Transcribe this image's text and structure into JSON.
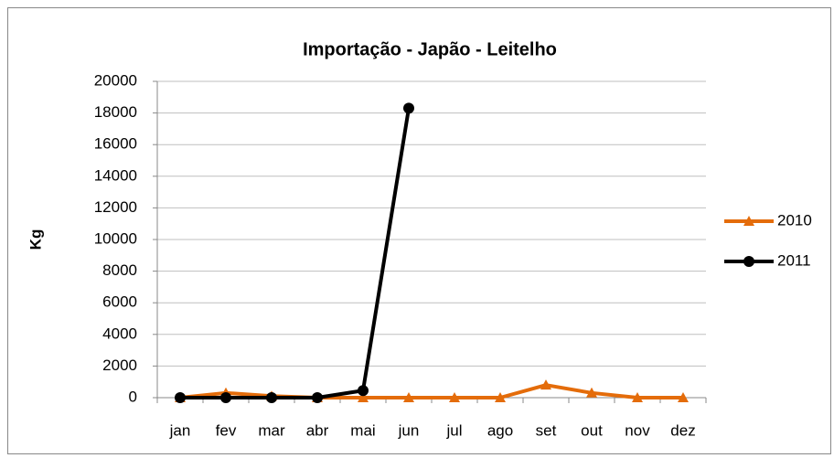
{
  "chart_data": {
    "type": "line",
    "title": "Importação - Japão - Leitelho",
    "y_label": "Kg",
    "categories": [
      "jan",
      "fev",
      "mar",
      "abr",
      "mai",
      "jun",
      "jul",
      "ago",
      "set",
      "out",
      "nov",
      "dez"
    ],
    "series": [
      {
        "name": "2010",
        "color": "#e46c0a",
        "marker": "triangle",
        "values": [
          0,
          300,
          100,
          0,
          0,
          0,
          0,
          0,
          800,
          300,
          0,
          0
        ]
      },
      {
        "name": "2011",
        "color": "#000000",
        "marker": "circle",
        "values": [
          0,
          0,
          0,
          0,
          450,
          18300,
          null,
          null,
          null,
          null,
          null,
          null
        ]
      }
    ],
    "ylim": [
      0,
      20000
    ],
    "yticks": [
      0,
      2000,
      4000,
      6000,
      8000,
      10000,
      12000,
      14000,
      16000,
      18000,
      20000
    ],
    "grid": true,
    "legend": "right"
  }
}
